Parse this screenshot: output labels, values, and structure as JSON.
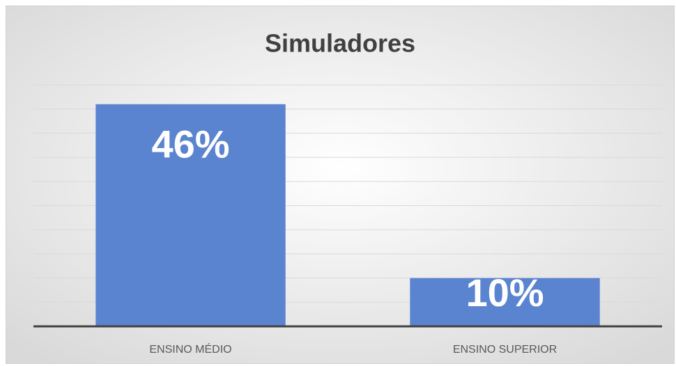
{
  "chart_data": {
    "type": "bar",
    "title": "Simuladores",
    "categories": [
      "ENSINO MÉDIO",
      "ENSINO SUPERIOR"
    ],
    "values": [
      46,
      10
    ],
    "value_labels": [
      "46%",
      "10%"
    ],
    "color": "#5b84d0",
    "ylim": [
      0,
      50
    ],
    "yticks": [
      0,
      5,
      10,
      15,
      20,
      25,
      30,
      35,
      40,
      45,
      50
    ],
    "grid": true
  }
}
